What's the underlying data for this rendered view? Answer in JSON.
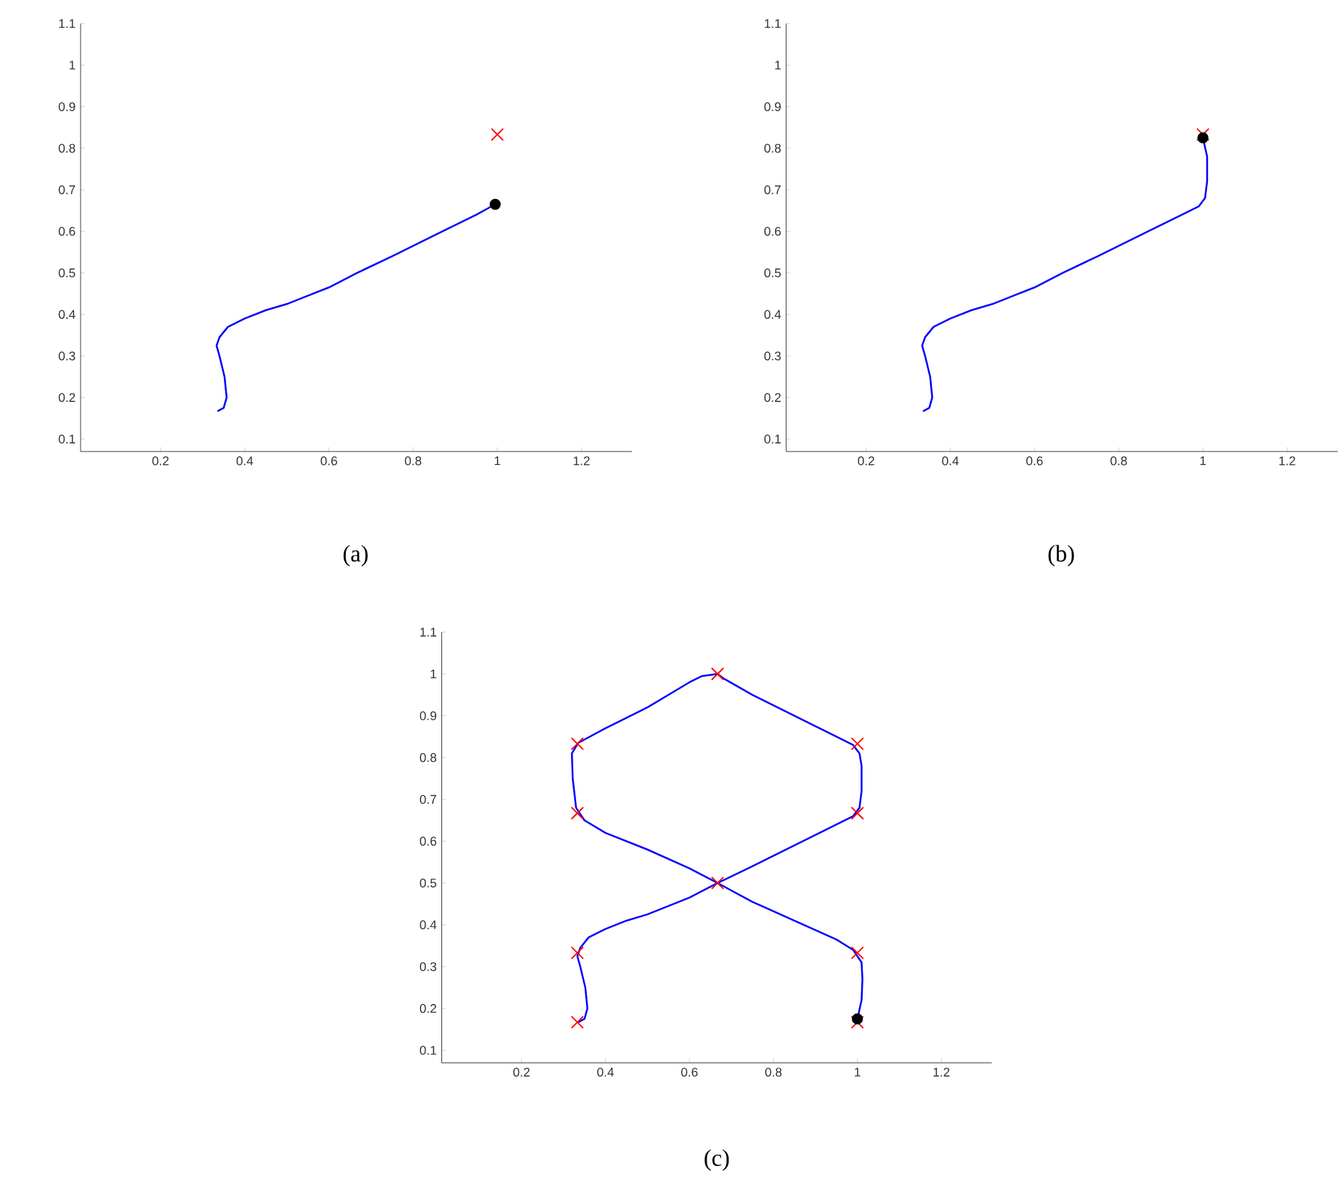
{
  "chart_data": [
    {
      "type": "line",
      "title": "(a)",
      "xlim": [
        0.01,
        1.32
      ],
      "ylim": [
        0.07,
        1.1
      ],
      "xticks": [
        0.2,
        0.4,
        0.6,
        0.8,
        1,
        1.2
      ],
      "yticks": [
        0.1,
        0.2,
        0.3,
        0.4,
        0.5,
        0.6,
        0.7,
        0.8,
        0.9,
        1,
        1.1
      ],
      "grid": false,
      "series": [
        {
          "type": "line",
          "color": "#0000ff",
          "marker": "none",
          "line_style": "solid",
          "x": [
            0.335,
            0.35,
            0.357,
            0.352,
            0.34,
            0.333,
            0.34,
            0.36,
            0.4,
            0.45,
            0.5,
            0.55,
            0.6,
            0.667,
            0.75,
            0.85,
            0.95,
            0.995
          ],
          "values": [
            0.167,
            0.175,
            0.2,
            0.25,
            0.3,
            0.325,
            0.345,
            0.37,
            0.39,
            0.41,
            0.425,
            0.445,
            0.465,
            0.5,
            0.54,
            0.59,
            0.64,
            0.665
          ]
        },
        {
          "type": "scatter",
          "color": "#ff0000",
          "marker": "cross",
          "x": [
            1
          ],
          "values": [
            0.833
          ]
        },
        {
          "type": "scatter",
          "color": "#000000",
          "marker": "circle",
          "x": [
            0.995
          ],
          "values": [
            0.665
          ]
        }
      ]
    },
    {
      "type": "line",
      "title": "(b)",
      "xlim": [
        0.01,
        1.32
      ],
      "ylim": [
        0.07,
        1.1
      ],
      "xticks": [
        0.2,
        0.4,
        0.6,
        0.8,
        1,
        1.2
      ],
      "yticks": [
        0.1,
        0.2,
        0.3,
        0.4,
        0.5,
        0.6,
        0.7,
        0.8,
        0.9,
        1,
        1.1
      ],
      "grid": false,
      "series": [
        {
          "type": "line",
          "color": "#0000ff",
          "marker": "none",
          "line_style": "solid",
          "x": [
            0.335,
            0.35,
            0.357,
            0.352,
            0.34,
            0.333,
            0.34,
            0.36,
            0.4,
            0.45,
            0.5,
            0.55,
            0.6,
            0.667,
            0.75,
            0.85,
            0.95,
            0.99,
            1.005,
            1.01,
            1.01,
            1.0
          ],
          "values": [
            0.167,
            0.175,
            0.2,
            0.25,
            0.3,
            0.325,
            0.345,
            0.37,
            0.39,
            0.41,
            0.425,
            0.445,
            0.465,
            0.5,
            0.54,
            0.59,
            0.64,
            0.66,
            0.68,
            0.72,
            0.78,
            0.825
          ]
        },
        {
          "type": "scatter",
          "color": "#ff0000",
          "marker": "cross",
          "x": [
            1
          ],
          "values": [
            0.833
          ]
        },
        {
          "type": "scatter",
          "color": "#000000",
          "marker": "circle",
          "x": [
            1.0
          ],
          "values": [
            0.825
          ]
        }
      ]
    },
    {
      "type": "line",
      "title": "(c)",
      "xlim": [
        0.01,
        1.32
      ],
      "ylim": [
        0.07,
        1.1
      ],
      "xticks": [
        0.2,
        0.4,
        0.6,
        0.8,
        1,
        1.2
      ],
      "yticks": [
        0.1,
        0.2,
        0.3,
        0.4,
        0.5,
        0.6,
        0.7,
        0.8,
        0.9,
        1,
        1.1
      ],
      "grid": false,
      "series": [
        {
          "type": "line",
          "color": "#0000ff",
          "marker": "none",
          "line_style": "solid",
          "x": [
            0.335,
            0.35,
            0.357,
            0.352,
            0.34,
            0.333,
            0.34,
            0.36,
            0.4,
            0.45,
            0.5,
            0.55,
            0.6,
            0.667,
            0.75,
            0.85,
            0.95,
            0.99,
            1.005,
            1.01,
            1.01,
            1.005,
            0.99,
            0.95,
            0.85,
            0.75,
            0.68,
            0.667,
            0.63,
            0.6,
            0.5,
            0.4,
            0.335,
            0.32,
            0.322,
            0.33,
            0.35,
            0.4,
            0.5,
            0.6,
            0.667,
            0.75,
            0.85,
            0.95,
            0.99,
            1.01,
            1.012,
            1.01,
            1.0
          ],
          "values": [
            0.167,
            0.175,
            0.2,
            0.25,
            0.3,
            0.325,
            0.345,
            0.37,
            0.39,
            0.41,
            0.425,
            0.445,
            0.465,
            0.5,
            0.54,
            0.59,
            0.64,
            0.66,
            0.68,
            0.72,
            0.78,
            0.81,
            0.83,
            0.85,
            0.9,
            0.95,
            0.99,
            1.0,
            0.995,
            0.98,
            0.92,
            0.87,
            0.835,
            0.81,
            0.75,
            0.68,
            0.65,
            0.62,
            0.58,
            0.535,
            0.5,
            0.455,
            0.41,
            0.365,
            0.34,
            0.31,
            0.27,
            0.22,
            0.175
          ]
        },
        {
          "type": "scatter",
          "color": "#ff0000",
          "marker": "cross",
          "x": [
            0.333,
            0.333,
            0.333,
            0.333,
            0.667,
            0.667,
            1,
            1,
            1,
            1
          ],
          "values": [
            0.167,
            0.333,
            0.667,
            0.833,
            0.5,
            1.0,
            0.167,
            0.333,
            0.667,
            0.833
          ]
        },
        {
          "type": "scatter",
          "color": "#000000",
          "marker": "circle",
          "x": [
            1.0
          ],
          "values": [
            0.175
          ]
        }
      ]
    }
  ]
}
